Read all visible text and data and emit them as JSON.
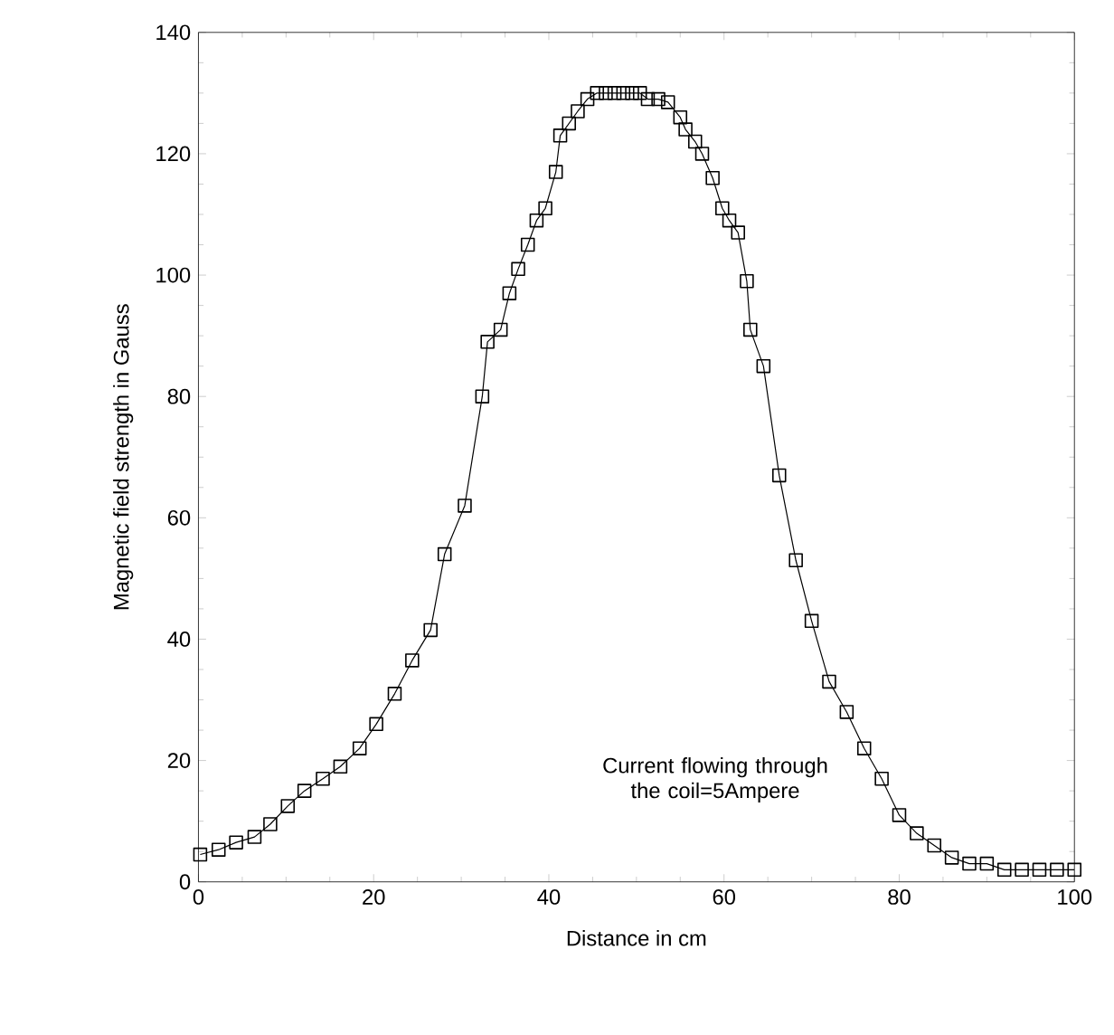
{
  "chart_data": {
    "type": "line",
    "xlabel": "Distance in cm",
    "ylabel": "Magnetic field strength in Gauss",
    "annotations": [
      "Current flowing through the coil=5Ampere"
    ],
    "xlim": [
      0,
      100
    ],
    "ylim": [
      0,
      140
    ],
    "xticks": [
      0,
      20,
      40,
      60,
      80,
      100
    ],
    "yticks": [
      0,
      20,
      40,
      60,
      80,
      100,
      120,
      140
    ],
    "grid": false,
    "marker": "square",
    "line_style": "solid",
    "series": [
      {
        "color": "#000000",
        "x": [
          0.2,
          2.3,
          4.3,
          6.4,
          8.2,
          10.2,
          12.1,
          14.2,
          16.2,
          18.4,
          20.3,
          22.4,
          24.4,
          26.5,
          28.1,
          30.4,
          32.4,
          33,
          34.5,
          35.5,
          36.5,
          37.6,
          38.6,
          39.6,
          40.8,
          41.3,
          42.3,
          43.3,
          44.4,
          45.5,
          46.5,
          47.5,
          48.5,
          49.5,
          50.4,
          51.3,
          52.5,
          53.6,
          55,
          55.6,
          56.7,
          57.5,
          58.7,
          59.8,
          60.6,
          61.6,
          62.6,
          63,
          64.5,
          66.3,
          68.2,
          70,
          72,
          74,
          76,
          78,
          80,
          82,
          84,
          86,
          88,
          90,
          92,
          94,
          96,
          98,
          100
        ],
        "values": [
          4.5,
          5.3,
          6.5,
          7.4,
          9.5,
          12.5,
          15,
          17,
          19,
          22,
          26,
          31,
          36.5,
          41.5,
          54,
          62,
          80,
          89,
          91,
          97,
          101,
          105,
          109,
          111,
          117,
          123,
          125,
          127,
          129,
          130,
          130,
          130,
          130,
          130,
          130,
          129,
          129,
          128.5,
          126,
          124,
          122,
          120,
          116,
          111,
          109,
          107,
          99,
          91,
          85,
          67,
          53,
          43,
          33,
          28,
          22,
          17,
          11,
          8,
          6,
          4,
          3,
          3,
          2,
          2,
          2,
          2,
          2
        ]
      }
    ]
  }
}
